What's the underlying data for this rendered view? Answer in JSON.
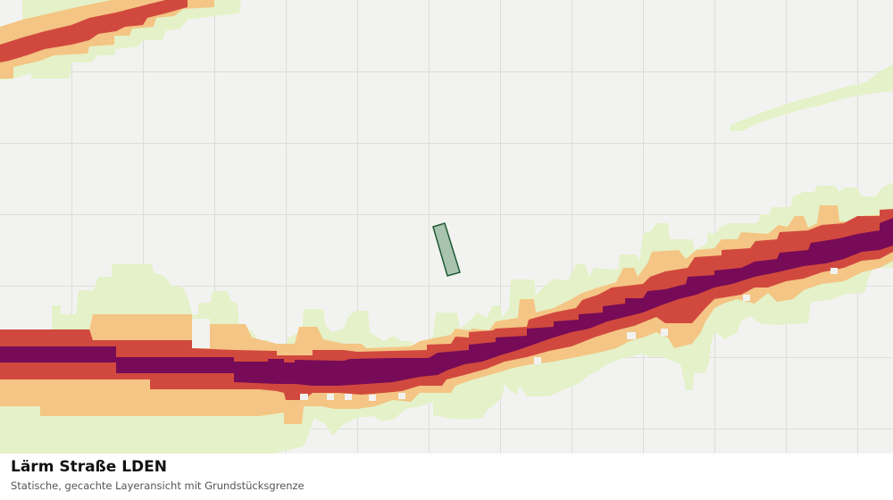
{
  "map": {
    "title": "Lärm Straße LDEN",
    "subtitle": "Statische, gecachte Layeransicht mit Grundstücksgrenze",
    "colors": {
      "background": "#f2f3f1",
      "grid": "#dcdedb",
      "zone_low": "#e5f1c8",
      "zone_medium": "#f4c584",
      "zone_high": "#d1493e",
      "zone_very_high": "#770b57",
      "parcel_fill": "#a8c4ae",
      "parcel_stroke": "#1f5a33"
    }
  }
}
